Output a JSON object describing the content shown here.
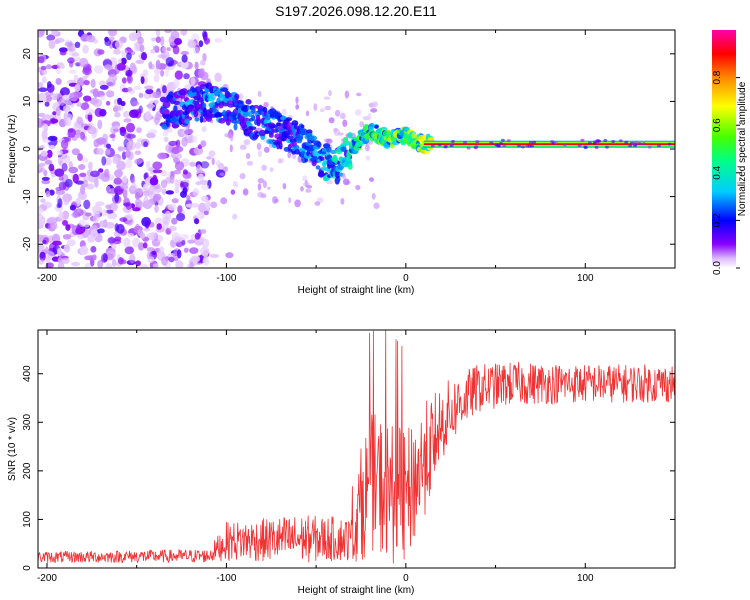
{
  "title": "S197.2026.098.12.20.E11",
  "chart_data": [
    {
      "type": "heatmap",
      "description_role": "spectrogram",
      "xlabel": "Height of straight line (km)",
      "ylabel": "Frequency (Hz)",
      "xlim": [
        -205,
        150
      ],
      "ylim": [
        -25,
        25
      ],
      "xticks": [
        -200,
        -100,
        0,
        100
      ],
      "yticks": [
        -20,
        -10,
        0,
        10,
        20
      ],
      "colorbar": {
        "label": "Normalized spectral amplitude",
        "range": [
          0,
          1
        ],
        "ticks": [
          0.0,
          0.2,
          0.4,
          0.6,
          0.8
        ],
        "tick_labels": [
          "0.0",
          "0.2",
          "0.4",
          "0.6",
          "0.8"
        ],
        "colors": [
          "#ffffff",
          "#8800ff",
          "#0000ff",
          "#00ffff",
          "#00ff00",
          "#ffff00",
          "#ff8800",
          "#ff0000",
          "#ff00aa"
        ]
      },
      "ridge": {
        "x": [
          -130,
          -120,
          -110,
          -100,
          -90,
          -80,
          -70,
          -60,
          -50,
          -40,
          -30,
          -25,
          -20,
          -10,
          0,
          10,
          20,
          50,
          100,
          150
        ],
        "freq": [
          8,
          9,
          10,
          9,
          7,
          5,
          4,
          2,
          -1,
          -4,
          0,
          2,
          4,
          2,
          3,
          1,
          1,
          1,
          1,
          1
        ],
        "amp": [
          0.25,
          0.3,
          0.3,
          0.3,
          0.3,
          0.3,
          0.28,
          0.28,
          0.32,
          0.4,
          0.45,
          0.5,
          0.55,
          0.6,
          0.65,
          0.7,
          0.85,
          0.88,
          0.9,
          0.9
        ]
      }
    },
    {
      "type": "line",
      "xlabel": "Height of straight line (km)",
      "ylabel": "SNR (10 * v/v)",
      "xlim": [
        -205,
        150
      ],
      "ylim": [
        0,
        490
      ],
      "xticks": [
        -200,
        -100,
        0,
        100
      ],
      "yticks": [
        0,
        100,
        200,
        300,
        400
      ],
      "color": "#ee3333",
      "envelope": {
        "x": [
          -205,
          -110,
          -100,
          -60,
          -30,
          -25,
          -20,
          -10,
          0,
          10,
          20,
          30,
          40,
          60,
          100,
          150
        ],
        "mean": [
          22,
          25,
          55,
          60,
          60,
          130,
          180,
          160,
          140,
          220,
          300,
          340,
          370,
          380,
          380,
          380
        ],
        "amp": [
          12,
          14,
          40,
          50,
          45,
          120,
          140,
          150,
          140,
          120,
          80,
          60,
          50,
          45,
          40,
          40
        ]
      }
    }
  ]
}
